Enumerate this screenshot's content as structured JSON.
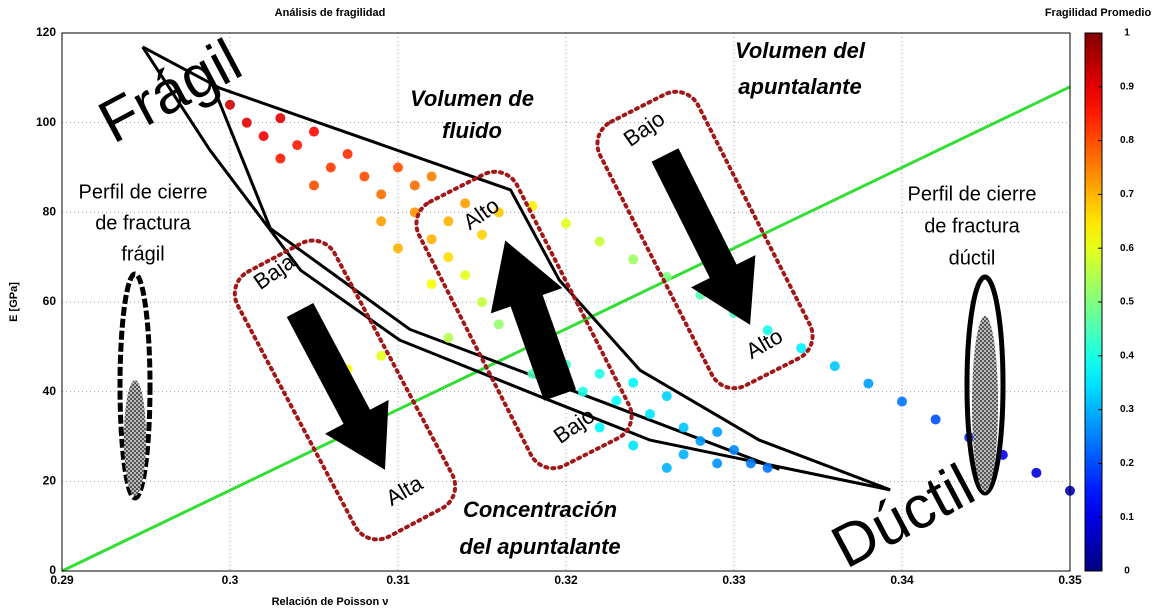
{
  "chart_data": {
    "type": "scatter",
    "title": "Análisis de fragilidad",
    "xlabel": "Relación de Poisson ν",
    "ylabel": "E [GPa]",
    "xlim": [
      0.29,
      0.35
    ],
    "ylim": [
      0,
      120
    ],
    "xticks": [
      0.29,
      0.3,
      0.31,
      0.32,
      0.33,
      0.34,
      0.35
    ],
    "yticks": [
      0,
      20,
      40,
      60,
      80,
      100,
      120
    ],
    "grid": true,
    "colormap": "jet",
    "colorbar": {
      "title": "Fragilidad Promedio",
      "lim": [
        0,
        1
      ],
      "ticks": [
        0,
        0.1,
        0.2,
        0.3,
        0.4,
        0.5,
        0.6,
        0.7,
        0.8,
        0.9,
        1
      ]
    },
    "series": [
      {
        "x": [
          0.3,
          0.301,
          0.302,
          0.303,
          0.304,
          0.305,
          0.303,
          0.306,
          0.307,
          0.308,
          0.305,
          0.309,
          0.31,
          0.311,
          0.312,
          0.309,
          0.311,
          0.312,
          0.313,
          0.314,
          0.31,
          0.313,
          0.315,
          0.316,
          0.312,
          0.314,
          0.315,
          0.317,
          0.316,
          0.318,
          0.313,
          0.309,
          0.307,
          0.319,
          0.318,
          0.32,
          0.321,
          0.322,
          0.323,
          0.324,
          0.325,
          0.322,
          0.326,
          0.327,
          0.324,
          0.327,
          0.328,
          0.329,
          0.33,
          0.331,
          0.332,
          0.329,
          0.326,
          0.318,
          0.32,
          0.322,
          0.324,
          0.326,
          0.328,
          0.33,
          0.332,
          0.334,
          0.336,
          0.338,
          0.34,
          0.342,
          0.344,
          0.346,
          0.348,
          0.35
        ],
        "y": [
          104,
          100,
          97,
          101,
          95,
          98,
          92,
          90,
          93,
          88,
          86,
          84,
          90,
          86,
          88,
          78,
          80,
          74,
          78,
          82,
          72,
          70,
          75,
          80,
          64,
          66,
          60,
          62,
          55,
          57,
          52,
          48,
          45,
          50,
          44,
          46,
          40,
          44,
          38,
          42,
          35,
          32,
          39,
          32,
          28,
          26,
          29,
          24,
          27,
          24,
          23,
          31,
          23,
          81.4,
          77.5,
          73.5,
          69.5,
          65.6,
          61.6,
          57.6,
          53.7,
          49.7,
          45.7,
          41.8,
          37.8,
          33.8,
          29.8,
          25.9,
          21.9,
          17.9
        ],
        "c": [
          0.92,
          0.9,
          0.88,
          0.9,
          0.85,
          0.87,
          0.85,
          0.82,
          0.83,
          0.8,
          0.8,
          0.77,
          0.8,
          0.77,
          0.75,
          0.72,
          0.73,
          0.7,
          0.7,
          0.72,
          0.7,
          0.66,
          0.67,
          0.68,
          0.62,
          0.6,
          0.57,
          0.58,
          0.52,
          0.52,
          0.55,
          0.6,
          0.62,
          0.48,
          0.45,
          0.43,
          0.4,
          0.4,
          0.38,
          0.37,
          0.35,
          0.37,
          0.33,
          0.32,
          0.35,
          0.3,
          0.28,
          0.27,
          0.26,
          0.25,
          0.24,
          0.28,
          0.3,
          0.64,
          0.6,
          0.57,
          0.53,
          0.5,
          0.46,
          0.43,
          0.4,
          0.36,
          0.32,
          0.28,
          0.24,
          0.2,
          0.16,
          0.12,
          0.09,
          0.06
        ]
      }
    ],
    "lines": [
      {
        "color": "#33dd33",
        "x": [
          0.29,
          0.35
        ],
        "y": [
          0,
          108
        ]
      },
      {
        "color": "#000000",
        "x": [
          0.2948,
          0.2988,
          0.3042,
          0.3101,
          0.319,
          0.325,
          0.3393
        ],
        "y": [
          116.9,
          93.9,
          67.1,
          51.5,
          38.1,
          29.2,
          18.1
        ]
      },
      {
        "color": "#000000",
        "x": [
          0.2948,
          0.2994,
          0.3167,
          0.3196,
          0.3244,
          0.3315,
          0.3393
        ],
        "y": [
          116.9,
          107.7,
          85.0,
          64.9,
          44.8,
          29.2,
          18.1
        ]
      },
      {
        "color": "#000000",
        "x": [
          0.2988,
          0.3024,
          0.3107,
          0.3202,
          0.3327
        ],
        "y": [
          109.9,
          76.4,
          53.9,
          40.5,
          22.7
        ]
      }
    ],
    "annotations": [
      "Frágil",
      "Dúctil",
      "Volumen de",
      "fluido",
      "Volumen del",
      "apuntalante",
      "Concentración",
      "del apuntalante",
      "Perfil de cierre",
      "de fractura",
      "frágil",
      "Perfil de cierre",
      "de fractura",
      "dúctil",
      "Bajo",
      "Alto",
      "Baja",
      "Alta",
      "Alto",
      "Bajo"
    ]
  }
}
